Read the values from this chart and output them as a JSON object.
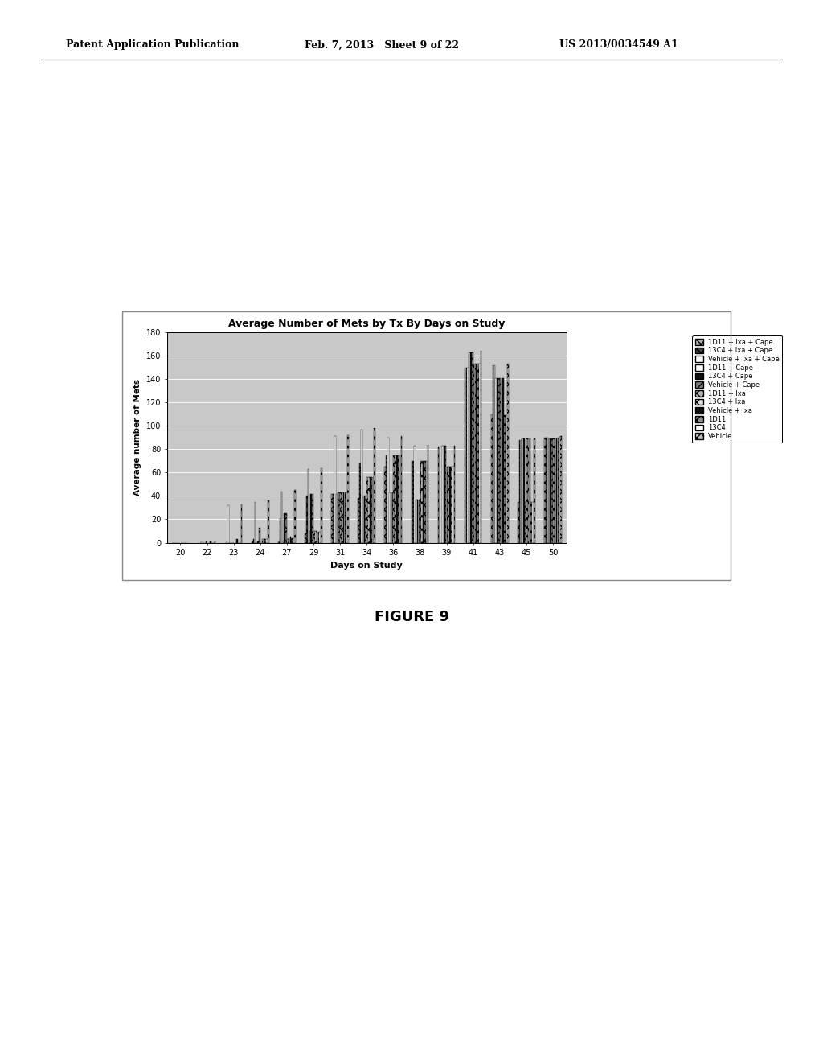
{
  "title": "Average Number of Mets by Tx By Days on Study",
  "xlabel": "Days on Study",
  "ylabel": "Average number of Mets",
  "ylim": [
    0,
    180
  ],
  "yticks": [
    0,
    20,
    40,
    60,
    80,
    100,
    120,
    140,
    160,
    180
  ],
  "days": [
    20,
    22,
    23,
    24,
    27,
    29,
    31,
    34,
    36,
    38,
    39,
    41,
    43,
    45,
    50
  ],
  "series_labels": [
    "1D11 + lxa + Cape",
    "13C4 + lxa + Cape",
    "Vehicle + lxa + Cape",
    "1D11 + Cape",
    "13C4 + Cape",
    "Vehicle + Cape",
    "1D11 + lxa",
    "13C4 + lxa",
    "Vehicle + lxa",
    "1D11",
    "13C4",
    "Vehicle"
  ],
  "bar_data": [
    [
      0,
      0,
      0,
      1,
      1,
      8,
      42,
      38,
      65,
      70,
      82,
      150,
      110,
      35,
      90
    ],
    [
      0,
      0,
      1,
      3,
      21,
      40,
      42,
      68,
      75,
      70,
      82,
      150,
      152,
      88,
      90
    ],
    [
      0,
      1,
      32,
      35,
      44,
      63,
      91,
      97,
      90,
      83,
      82,
      150,
      152,
      88,
      90
    ],
    [
      0,
      0,
      0,
      0,
      2,
      10,
      42,
      39,
      43,
      37,
      83,
      163,
      141,
      89,
      89
    ],
    [
      0,
      0,
      0,
      1,
      25,
      42,
      43,
      40,
      43,
      37,
      83,
      163,
      141,
      89,
      89
    ],
    [
      0,
      1,
      0,
      13,
      25,
      42,
      43,
      40,
      43,
      37,
      83,
      163,
      141,
      35,
      89
    ],
    [
      0,
      0,
      0,
      0,
      3,
      10,
      43,
      56,
      75,
      70,
      65,
      153,
      141,
      89,
      89
    ],
    [
      0,
      0,
      0,
      3,
      4,
      10,
      43,
      56,
      75,
      70,
      65,
      153,
      141,
      89,
      89
    ],
    [
      0,
      1,
      3,
      4,
      5,
      9,
      43,
      56,
      75,
      70,
      65,
      153,
      141,
      89,
      89
    ],
    [
      0,
      0,
      0,
      3,
      4,
      9,
      43,
      56,
      75,
      70,
      65,
      153,
      109,
      35,
      90
    ],
    [
      0,
      0,
      0,
      3,
      4,
      9,
      43,
      56,
      75,
      70,
      65,
      153,
      109,
      35,
      90
    ],
    [
      0,
      1,
      33,
      36,
      45,
      64,
      92,
      98,
      91,
      84,
      83,
      164,
      153,
      89,
      91
    ]
  ],
  "series_styles": [
    {
      "facecolor": "#b0b0b0",
      "hatch": "xxx",
      "edgecolor": "black"
    },
    {
      "facecolor": "#404040",
      "hatch": "XXX",
      "edgecolor": "black"
    },
    {
      "facecolor": "#ffffff",
      "hatch": "",
      "edgecolor": "black"
    },
    {
      "facecolor": "#ffffff",
      "hatch": "",
      "edgecolor": "black"
    },
    {
      "facecolor": "#101010",
      "hatch": "",
      "edgecolor": "black"
    },
    {
      "facecolor": "#808080",
      "hatch": "xx",
      "edgecolor": "black"
    },
    {
      "facecolor": "#b0b0b0",
      "hatch": "xxx",
      "edgecolor": "black"
    },
    {
      "facecolor": "#e0e0e0",
      "hatch": "xx",
      "edgecolor": "black"
    },
    {
      "facecolor": "#101010",
      "hatch": "",
      "edgecolor": "black"
    },
    {
      "facecolor": "#909090",
      "hatch": "xxx",
      "edgecolor": "black"
    },
    {
      "facecolor": "#ffffff",
      "hatch": "",
      "edgecolor": "black"
    },
    {
      "facecolor": "#c0c0c0",
      "hatch": "xxx",
      "edgecolor": "black"
    }
  ],
  "header_left": "Patent Application Publication",
  "header_mid": "Feb. 7, 2013   Sheet 9 of 22",
  "header_right": "US 2013/0034549 A1",
  "fig_caption": "FIGURE 9",
  "chart_bg": "#c8c8c8",
  "fig_bg": "#ffffff",
  "bar_width": 0.055
}
